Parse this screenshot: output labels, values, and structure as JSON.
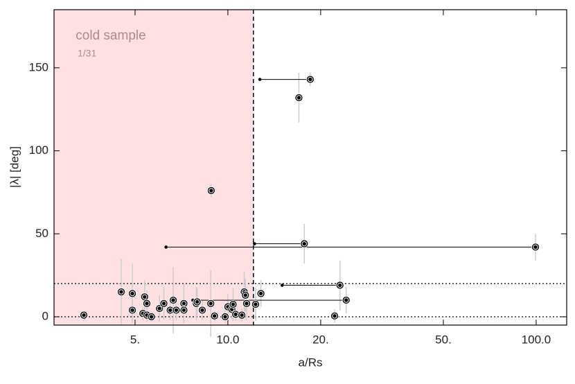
{
  "chart_data": {
    "type": "scatter",
    "xlabel": "a/Rs",
    "ylabel": "|λ| [deg]",
    "annotation": "cold sample",
    "annotation_sub": "1/31",
    "xscale": "log",
    "xlim": [
      2.73,
      125.6
    ],
    "ylim": [
      -5,
      185
    ],
    "xticks": [
      {
        "value": 5,
        "label": "5."
      },
      {
        "value": 10,
        "label": "10.0"
      },
      {
        "value": 20,
        "label": "20."
      },
      {
        "value": 50,
        "label": "50."
      },
      {
        "value": 100,
        "label": "100.0"
      }
    ],
    "yticks": [
      0,
      50,
      100,
      150
    ],
    "region_xmax": 12.1,
    "region_color": "#ffe0e3",
    "hlines": [
      0,
      20
    ],
    "color": "#000000",
    "x": [
      3.41,
      4.51,
      4.9,
      4.9,
      5.37,
      5.46,
      5.3,
      5.46,
      5.65,
      6.0,
      6.2,
      6.5,
      6.65,
      6.8,
      7.2,
      7.2,
      7.9,
      7.95,
      8.26,
      8.8,
      8.83,
      9.05,
      9.8,
      10.0,
      10.3,
      10.4,
      10.6,
      11.1,
      11.3,
      11.4,
      11.5,
      12.3,
      12.8,
      17.0,
      18.5,
      17.7,
      99.5,
      23.1,
      24.2,
      22.2
    ],
    "y": [
      1,
      15,
      14,
      4,
      12,
      8,
      2,
      1,
      0,
      5,
      8,
      4,
      10,
      4,
      8,
      4,
      8,
      9,
      4,
      8,
      76,
      0.5,
      0,
      6,
      4.5,
      7.5,
      1.5,
      1,
      15,
      13,
      8,
      7.5,
      14,
      132,
      143,
      44,
      42,
      19,
      10,
      0.5
    ],
    "yerr": [
      2,
      20,
      18,
      6,
      10,
      8,
      4,
      4,
      3,
      8,
      10,
      6,
      20,
      6,
      12,
      6,
      10,
      8,
      6,
      20,
      4,
      3,
      4,
      8,
      6,
      10,
      4,
      4,
      12,
      10,
      10,
      10,
      8,
      15,
      4,
      12,
      8,
      15,
      8,
      4
    ],
    "x_start": [
      null,
      null,
      null,
      null,
      null,
      null,
      null,
      null,
      null,
      null,
      null,
      null,
      null,
      null,
      null,
      null,
      null,
      null,
      null,
      null,
      null,
      null,
      null,
      null,
      null,
      null,
      null,
      null,
      null,
      null,
      null,
      null,
      null,
      null,
      12.7,
      12.2,
      6.3,
      15.0,
      7.7,
      null
    ]
  }
}
